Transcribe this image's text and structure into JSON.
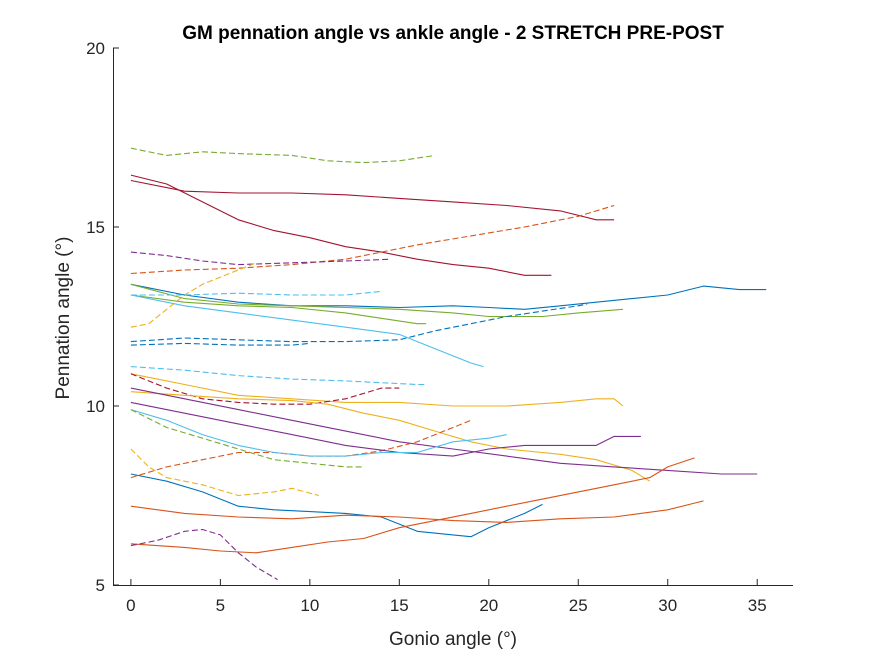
{
  "chart_data": {
    "type": "line",
    "title": "GM pennation angle vs ankle angle - 2 STRETCH PRE-POST",
    "xlabel": "Gonio angle (°)",
    "ylabel": "Pennation angle (°)",
    "xlim": [
      -1,
      37
    ],
    "ylim": [
      5,
      20
    ],
    "xticks": [
      0,
      5,
      10,
      15,
      20,
      25,
      30,
      35
    ],
    "yticks": [
      5,
      10,
      15,
      20
    ],
    "grid": false,
    "box": "left-bottom",
    "series": [
      {
        "color": "#77AC30",
        "dashed": true,
        "points": [
          [
            0,
            17.2
          ],
          [
            2,
            17.0
          ],
          [
            4,
            17.1
          ],
          [
            6,
            17.05
          ],
          [
            9,
            17.0
          ],
          [
            11,
            16.85
          ],
          [
            13,
            16.8
          ],
          [
            15,
            16.85
          ],
          [
            17,
            17.0
          ]
        ]
      },
      {
        "color": "#A2142F",
        "dashed": false,
        "points": [
          [
            0,
            16.3
          ],
          [
            3,
            16.0
          ],
          [
            6,
            15.95
          ],
          [
            9,
            15.95
          ],
          [
            12,
            15.9
          ],
          [
            15,
            15.8
          ],
          [
            18,
            15.7
          ],
          [
            21,
            15.6
          ],
          [
            24,
            15.45
          ],
          [
            26,
            15.2
          ],
          [
            27,
            15.2
          ]
        ]
      },
      {
        "color": "#A2142F",
        "dashed": false,
        "points": [
          [
            0,
            16.45
          ],
          [
            2,
            16.2
          ],
          [
            4,
            15.7
          ],
          [
            6,
            15.2
          ],
          [
            8,
            14.9
          ],
          [
            10,
            14.7
          ],
          [
            12,
            14.45
          ],
          [
            14,
            14.3
          ],
          [
            16,
            14.1
          ],
          [
            18,
            13.95
          ],
          [
            20,
            13.85
          ],
          [
            22,
            13.65
          ],
          [
            23.5,
            13.65
          ]
        ]
      },
      {
        "color": "#D95319",
        "dashed": true,
        "points": [
          [
            0,
            13.7
          ],
          [
            3,
            13.8
          ],
          [
            6,
            13.85
          ],
          [
            9,
            13.95
          ],
          [
            12,
            14.1
          ],
          [
            14,
            14.3
          ],
          [
            16,
            14.5
          ],
          [
            19,
            14.75
          ],
          [
            22,
            15.0
          ],
          [
            25,
            15.3
          ],
          [
            27,
            15.6
          ]
        ]
      },
      {
        "color": "#7E2F8E",
        "dashed": true,
        "points": [
          [
            0,
            14.3
          ],
          [
            2,
            14.2
          ],
          [
            4,
            14.05
          ],
          [
            6,
            13.95
          ],
          [
            9,
            14.0
          ],
          [
            12,
            14.05
          ],
          [
            14.5,
            14.1
          ]
        ]
      },
      {
        "color": "#EDB120",
        "dashed": true,
        "points": [
          [
            0,
            12.2
          ],
          [
            1,
            12.3
          ],
          [
            2,
            12.7
          ],
          [
            3,
            13.1
          ],
          [
            4,
            13.4
          ],
          [
            5,
            13.6
          ],
          [
            6,
            13.8
          ],
          [
            7,
            14.0
          ]
        ]
      },
      {
        "color": "#0072BD",
        "dashed": false,
        "points": [
          [
            0,
            13.4
          ],
          [
            3,
            13.1
          ],
          [
            6,
            12.9
          ],
          [
            9,
            12.8
          ],
          [
            12,
            12.8
          ],
          [
            15,
            12.75
          ],
          [
            18,
            12.8
          ],
          [
            20,
            12.75
          ],
          [
            22,
            12.7
          ],
          [
            24,
            12.8
          ],
          [
            26,
            12.9
          ],
          [
            28,
            13.0
          ],
          [
            30,
            13.1
          ],
          [
            32,
            13.35
          ],
          [
            34,
            13.25
          ],
          [
            35.5,
            13.25
          ]
        ]
      },
      {
        "color": "#77AC30",
        "dashed": false,
        "points": [
          [
            0,
            13.4
          ],
          [
            3,
            13.0
          ],
          [
            6,
            12.85
          ],
          [
            9,
            12.8
          ],
          [
            12,
            12.75
          ],
          [
            15,
            12.7
          ],
          [
            18,
            12.6
          ],
          [
            20,
            12.5
          ],
          [
            23,
            12.5
          ],
          [
            25,
            12.6
          ],
          [
            27.5,
            12.7
          ]
        ]
      },
      {
        "color": "#77AC30",
        "dashed": false,
        "points": [
          [
            0,
            13.1
          ],
          [
            3,
            12.9
          ],
          [
            6,
            12.8
          ],
          [
            9,
            12.75
          ],
          [
            12,
            12.6
          ],
          [
            14,
            12.45
          ],
          [
            16,
            12.3
          ],
          [
            16.5,
            12.3
          ]
        ]
      },
      {
        "color": "#4DBEEE",
        "dashed": false,
        "points": [
          [
            0,
            13.1
          ],
          [
            3,
            12.8
          ],
          [
            6,
            12.6
          ],
          [
            9,
            12.4
          ],
          [
            12,
            12.2
          ],
          [
            15,
            12.0
          ],
          [
            17,
            11.6
          ],
          [
            19,
            11.2
          ],
          [
            19.7,
            11.1
          ]
        ]
      },
      {
        "color": "#4DBEEE",
        "dashed": true,
        "points": [
          [
            0,
            13.1
          ],
          [
            3,
            13.1
          ],
          [
            6,
            13.15
          ],
          [
            9,
            13.1
          ],
          [
            12,
            13.1
          ],
          [
            14,
            13.2
          ]
        ]
      },
      {
        "color": "#0072BD",
        "dashed": true,
        "points": [
          [
            0,
            11.8
          ],
          [
            3,
            11.9
          ],
          [
            6,
            11.85
          ],
          [
            9,
            11.8
          ],
          [
            12,
            11.8
          ],
          [
            15,
            11.85
          ],
          [
            17,
            12.1
          ],
          [
            19,
            12.3
          ],
          [
            21,
            12.5
          ],
          [
            23,
            12.65
          ],
          [
            25,
            12.8
          ],
          [
            25.5,
            12.85
          ]
        ]
      },
      {
        "color": "#0072BD",
        "dashed": true,
        "points": [
          [
            0,
            11.7
          ],
          [
            3,
            11.75
          ],
          [
            6,
            11.7
          ],
          [
            9,
            11.7
          ],
          [
            10,
            11.75
          ]
        ]
      },
      {
        "color": "#4DBEEE",
        "dashed": true,
        "points": [
          [
            0,
            11.1
          ],
          [
            3,
            11.0
          ],
          [
            6,
            10.85
          ],
          [
            9,
            10.75
          ],
          [
            12,
            10.7
          ],
          [
            14,
            10.65
          ],
          [
            16,
            10.6
          ],
          [
            16.5,
            10.6
          ]
        ]
      },
      {
        "color": "#EDB120",
        "dashed": false,
        "points": [
          [
            0,
            10.9
          ],
          [
            3,
            10.6
          ],
          [
            6,
            10.3
          ],
          [
            9,
            10.2
          ],
          [
            12,
            10.1
          ],
          [
            15,
            10.1
          ],
          [
            18,
            10.0
          ],
          [
            21,
            10.0
          ],
          [
            24,
            10.1
          ],
          [
            26,
            10.2
          ],
          [
            27,
            10.2
          ],
          [
            27.5,
            10.0
          ]
        ]
      },
      {
        "color": "#A2142F",
        "dashed": true,
        "points": [
          [
            0,
            10.9
          ],
          [
            2,
            10.5
          ],
          [
            4,
            10.2
          ],
          [
            6,
            10.1
          ],
          [
            8,
            10.05
          ],
          [
            10,
            10.05
          ],
          [
            12,
            10.2
          ],
          [
            14,
            10.5
          ],
          [
            15,
            10.5
          ]
        ]
      },
      {
        "color": "#EDB120",
        "dashed": false,
        "points": [
          [
            0,
            10.4
          ],
          [
            3,
            10.3
          ],
          [
            6,
            10.2
          ],
          [
            9,
            10.15
          ],
          [
            11,
            10.05
          ],
          [
            13,
            9.8
          ],
          [
            15,
            9.6
          ],
          [
            17,
            9.3
          ],
          [
            19,
            9.0
          ],
          [
            21,
            8.8
          ],
          [
            24,
            8.65
          ],
          [
            26,
            8.5
          ],
          [
            28,
            8.2
          ],
          [
            29,
            7.9
          ]
        ]
      },
      {
        "color": "#7E2F8E",
        "dashed": false,
        "points": [
          [
            0,
            10.5
          ],
          [
            3,
            10.2
          ],
          [
            6,
            9.9
          ],
          [
            9,
            9.6
          ],
          [
            12,
            9.3
          ],
          [
            15,
            9.0
          ],
          [
            18,
            8.8
          ],
          [
            21,
            8.6
          ],
          [
            24,
            8.4
          ],
          [
            27,
            8.3
          ],
          [
            30,
            8.2
          ],
          [
            33,
            8.1
          ],
          [
            35,
            8.1
          ]
        ]
      },
      {
        "color": "#D95319",
        "dashed": true,
        "points": [
          [
            0,
            8.0
          ],
          [
            2,
            8.3
          ],
          [
            4,
            8.5
          ],
          [
            6,
            8.7
          ],
          [
            8,
            8.7
          ],
          [
            10,
            8.6
          ],
          [
            12,
            8.6
          ],
          [
            14,
            8.75
          ],
          [
            16,
            9.0
          ],
          [
            18,
            9.4
          ],
          [
            19,
            9.6
          ]
        ]
      },
      {
        "color": "#7E2F8E",
        "dashed": false,
        "points": [
          [
            0,
            10.1
          ],
          [
            3,
            9.8
          ],
          [
            6,
            9.5
          ],
          [
            9,
            9.2
          ],
          [
            12,
            8.9
          ],
          [
            15,
            8.7
          ],
          [
            18,
            8.6
          ],
          [
            20,
            8.8
          ],
          [
            22,
            8.9
          ],
          [
            24,
            8.9
          ],
          [
            26,
            8.9
          ],
          [
            27,
            9.15
          ],
          [
            28.5,
            9.15
          ]
        ]
      },
      {
        "color": "#4DBEEE",
        "dashed": false,
        "points": [
          [
            0,
            9.9
          ],
          [
            2,
            9.6
          ],
          [
            4,
            9.2
          ],
          [
            6,
            8.9
          ],
          [
            8,
            8.7
          ],
          [
            10,
            8.6
          ],
          [
            12,
            8.6
          ],
          [
            14,
            8.7
          ],
          [
            16,
            8.7
          ],
          [
            18,
            9.0
          ],
          [
            20,
            9.1
          ],
          [
            21,
            9.2
          ]
        ]
      },
      {
        "color": "#77AC30",
        "dashed": true,
        "points": [
          [
            0,
            9.9
          ],
          [
            2,
            9.4
          ],
          [
            4,
            9.1
          ],
          [
            6,
            8.8
          ],
          [
            8,
            8.5
          ],
          [
            10,
            8.4
          ],
          [
            12,
            8.3
          ],
          [
            13,
            8.3
          ]
        ]
      },
      {
        "color": "#EDB120",
        "dashed": true,
        "points": [
          [
            0,
            8.8
          ],
          [
            1,
            8.3
          ],
          [
            2,
            8.0
          ],
          [
            4,
            7.8
          ],
          [
            6,
            7.5
          ],
          [
            8,
            7.6
          ],
          [
            9,
            7.7
          ],
          [
            10.5,
            7.5
          ]
        ]
      },
      {
        "color": "#0072BD",
        "dashed": false,
        "points": [
          [
            0,
            8.1
          ],
          [
            2,
            7.9
          ],
          [
            4,
            7.6
          ],
          [
            6,
            7.2
          ],
          [
            8,
            7.1
          ],
          [
            10,
            7.05
          ],
          [
            12,
            7.0
          ],
          [
            14,
            6.9
          ],
          [
            15,
            6.7
          ],
          [
            16,
            6.5
          ],
          [
            18,
            6.4
          ],
          [
            19,
            6.35
          ],
          [
            20,
            6.6
          ],
          [
            22,
            7.0
          ],
          [
            23,
            7.25
          ]
        ]
      },
      {
        "color": "#D95319",
        "dashed": false,
        "points": [
          [
            0,
            7.2
          ],
          [
            3,
            7.0
          ],
          [
            6,
            6.9
          ],
          [
            9,
            6.85
          ],
          [
            12,
            6.95
          ],
          [
            15,
            6.9
          ],
          [
            18,
            6.8
          ],
          [
            21,
            6.75
          ],
          [
            24,
            6.85
          ],
          [
            27,
            6.9
          ],
          [
            30,
            7.1
          ],
          [
            32,
            7.35
          ]
        ]
      },
      {
        "color": "#D95319",
        "dashed": false,
        "points": [
          [
            0,
            6.15
          ],
          [
            3,
            6.05
          ],
          [
            5,
            5.95
          ],
          [
            7,
            5.9
          ],
          [
            9,
            6.05
          ],
          [
            11,
            6.2
          ],
          [
            13,
            6.3
          ],
          [
            15,
            6.6
          ],
          [
            17,
            6.8
          ],
          [
            19,
            7.0
          ],
          [
            21,
            7.2
          ],
          [
            23,
            7.4
          ],
          [
            25,
            7.6
          ],
          [
            27,
            7.8
          ],
          [
            29,
            8.0
          ],
          [
            30,
            8.3
          ],
          [
            31.5,
            8.55
          ]
        ]
      },
      {
        "color": "#7E2F8E",
        "dashed": true,
        "points": [
          [
            0,
            6.1
          ],
          [
            1.5,
            6.25
          ],
          [
            3,
            6.5
          ],
          [
            4,
            6.55
          ],
          [
            5,
            6.4
          ],
          [
            6,
            5.9
          ],
          [
            7,
            5.5
          ],
          [
            8.2,
            5.15
          ]
        ]
      }
    ]
  }
}
